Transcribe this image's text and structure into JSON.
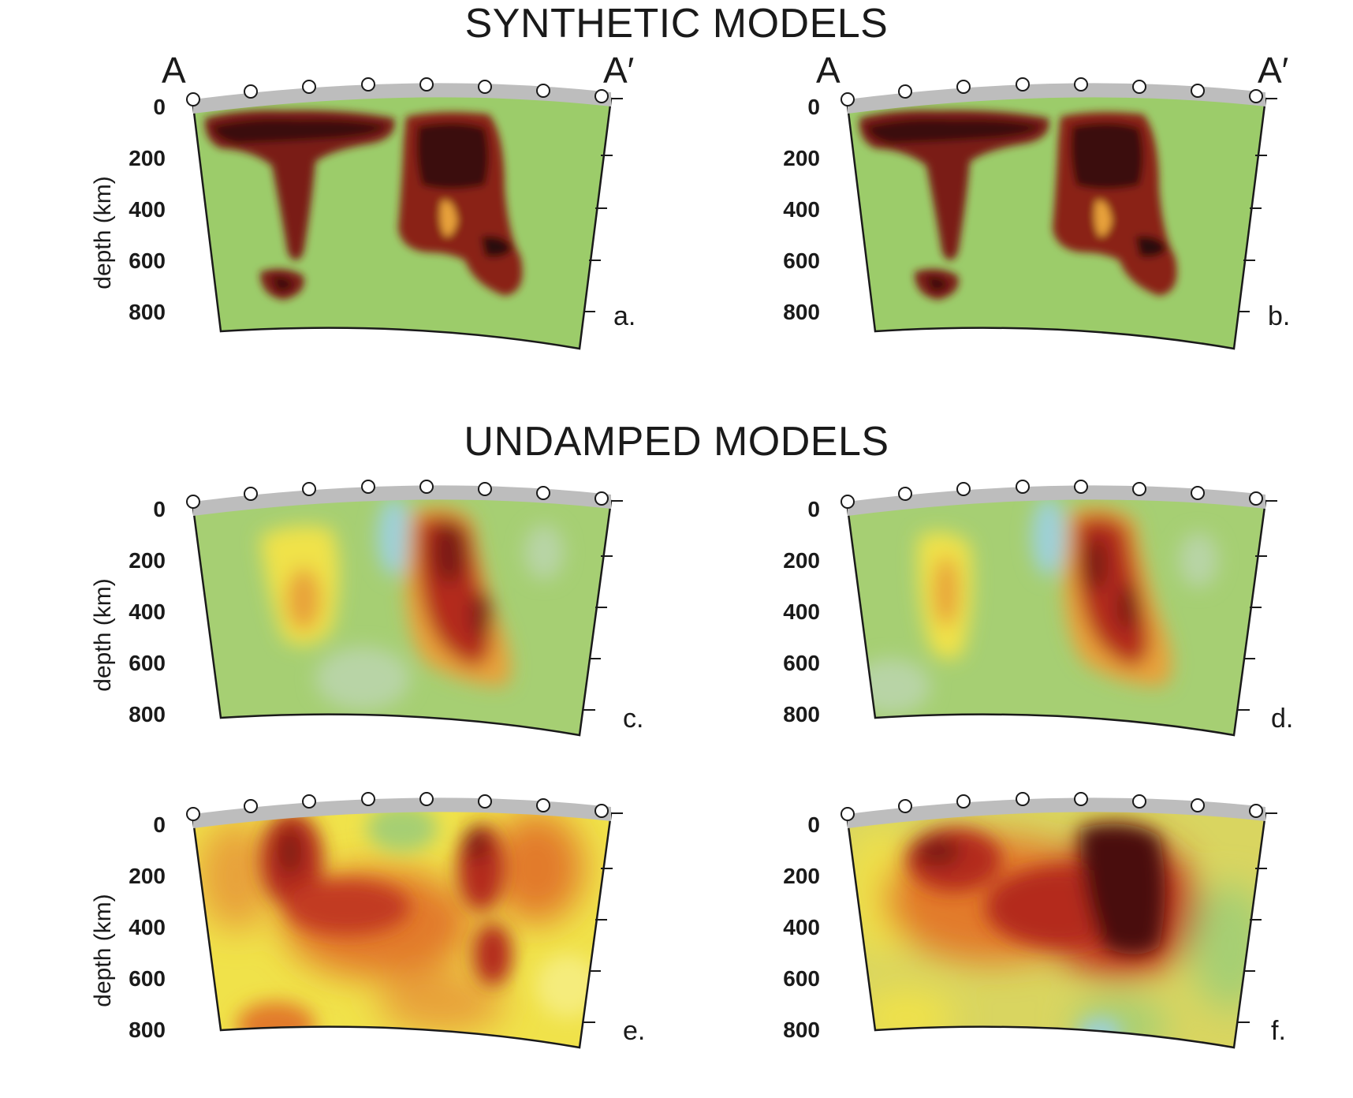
{
  "headings": {
    "synthetic": "SYNTHETIC MODELS",
    "undamped": "UNDAMPED MODELS"
  },
  "profile_labels": {
    "start": "A",
    "end": "A′"
  },
  "axis": {
    "ylabel": "depth (km)",
    "ticks": [
      "0",
      "200",
      "400",
      "600",
      "800"
    ]
  },
  "panels": [
    {
      "label": "a.",
      "section": "synthetic"
    },
    {
      "label": "b.",
      "section": "synthetic"
    },
    {
      "label": "c.",
      "section": "undamped"
    },
    {
      "label": "d.",
      "section": "undamped"
    },
    {
      "label": "e.",
      "section": "undamped"
    },
    {
      "label": "f.",
      "section": "undamped"
    }
  ],
  "colors": {
    "background_anomaly": "#9ccc6a",
    "weak_positive": "#f0e24a",
    "moderate_positive": "#e27a2c",
    "strong_positive": "#b42a1e",
    "very_strong_positive": "#4a0f0c",
    "negative": "#9dd0d8",
    "crust_band": "#bdbdbd"
  }
}
